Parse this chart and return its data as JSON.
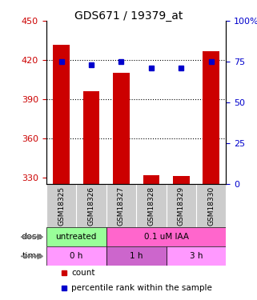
{
  "title": "GDS671 / 19379_at",
  "samples": [
    "GSM18325",
    "GSM18326",
    "GSM18327",
    "GSM18328",
    "GSM18329",
    "GSM18330"
  ],
  "bar_values": [
    432,
    396,
    410,
    332,
    331,
    427
  ],
  "percentile_values": [
    75,
    73,
    75,
    71,
    71,
    75
  ],
  "bar_color": "#cc0000",
  "dot_color": "#0000cc",
  "ylim_left": [
    325,
    450
  ],
  "ylim_right": [
    0,
    100
  ],
  "yticks_left": [
    330,
    360,
    390,
    420,
    450
  ],
  "yticks_right": [
    0,
    25,
    50,
    75,
    100
  ],
  "hlines": [
    360,
    390,
    420
  ],
  "dose_labels": [
    {
      "label": "untreated",
      "span": [
        0,
        2
      ],
      "color": "#99ff99"
    },
    {
      "label": "0.1 uM IAA",
      "span": [
        2,
        6
      ],
      "color": "#ff66cc"
    }
  ],
  "time_labels": [
    {
      "label": "0 h",
      "span": [
        0,
        2
      ],
      "color": "#ff99ff"
    },
    {
      "label": "1 h",
      "span": [
        2,
        4
      ],
      "color": "#cc66cc"
    },
    {
      "label": "3 h",
      "span": [
        4,
        6
      ],
      "color": "#ff99ff"
    }
  ],
  "legend_count_color": "#cc0000",
  "legend_pct_color": "#0000cc",
  "xlabel_color_left": "#cc0000",
  "xlabel_color_right": "#0000cc",
  "background_color": "#ffffff",
  "plot_bg_color": "#ffffff",
  "sample_bg_color": "#cccccc"
}
